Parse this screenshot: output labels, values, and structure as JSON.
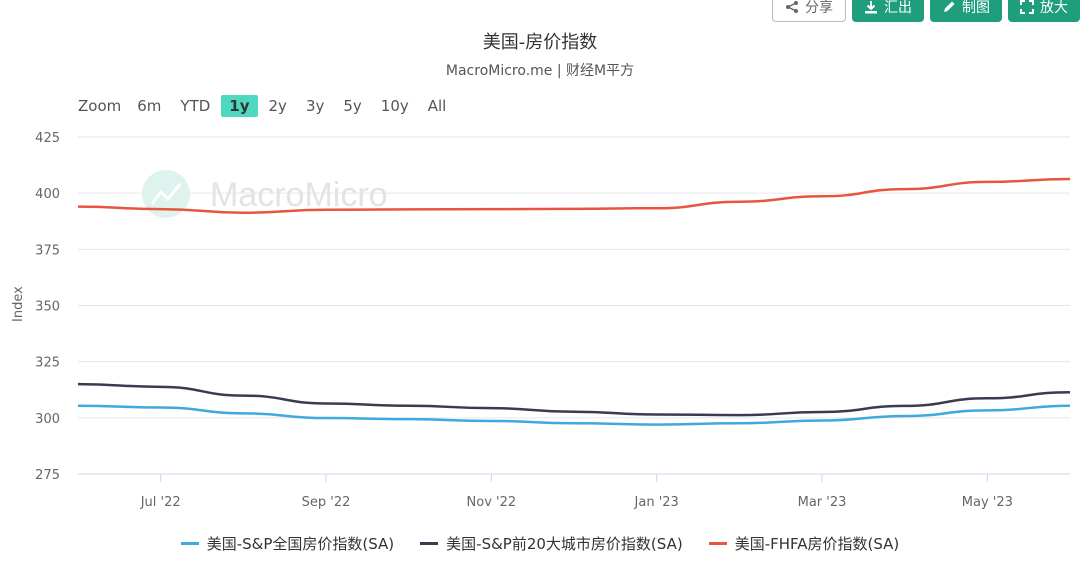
{
  "toolbar": {
    "share": "分享",
    "export": "汇出",
    "draw": "制图",
    "expand": "放大"
  },
  "range_selector": {
    "zoom_label": "Zoom",
    "options": [
      "6m",
      "YTD",
      "1y",
      "2y",
      "3y",
      "5y",
      "10y",
      "All"
    ],
    "selected": "1y"
  },
  "watermark": "MacroMicro",
  "colors": {
    "series1": "#3fa9dd",
    "series2": "#3b3b4f",
    "series3": "#e8553e",
    "active_range": "#4fd8c0",
    "button": "#1e9e7d"
  },
  "chart_data": {
    "type": "line",
    "title": "美国-房价指数",
    "subtitle": "MacroMicro.me | 财经M平方",
    "ylabel": "Index",
    "ylim": [
      275,
      425
    ],
    "yticks": [
      275,
      300,
      325,
      350,
      375,
      400,
      425
    ],
    "x": [
      "2022-06",
      "2022-07",
      "2022-08",
      "2022-09",
      "2022-10",
      "2022-11",
      "2022-12",
      "2023-01",
      "2023-02",
      "2023-03",
      "2023-04",
      "2023-05",
      "2023-06"
    ],
    "xtick_labels": [
      {
        "date": "2022-07",
        "label": "Jul '22"
      },
      {
        "date": "2022-09",
        "label": "Sep '22"
      },
      {
        "date": "2022-11",
        "label": "Nov '22"
      },
      {
        "date": "2023-01",
        "label": "Jan '23"
      },
      {
        "date": "2023-03",
        "label": "Mar '23"
      },
      {
        "date": "2023-05",
        "label": "May '23"
      }
    ],
    "series": [
      {
        "name": "美国-S&P全国房价指数(SA)",
        "color": "#3fa9dd",
        "values": [
          305.4,
          304.6,
          302.0,
          299.9,
          299.4,
          298.6,
          297.6,
          297.0,
          297.6,
          298.8,
          300.8,
          303.3,
          305.4
        ]
      },
      {
        "name": "美国-S&P前20大城市房价指数(SA)",
        "color": "#3b3b4f",
        "values": [
          315.0,
          313.8,
          309.9,
          306.4,
          305.4,
          304.3,
          302.7,
          301.5,
          301.2,
          302.6,
          305.3,
          308.7,
          311.4
        ]
      },
      {
        "name": "美国-FHFA房价指数(SA)",
        "color": "#e8553e",
        "values": [
          394.0,
          392.9,
          391.3,
          392.6,
          392.8,
          392.9,
          393.0,
          393.3,
          396.2,
          398.6,
          401.8,
          405.0,
          406.3
        ]
      }
    ],
    "legend_position": "bottom",
    "grid": true
  }
}
